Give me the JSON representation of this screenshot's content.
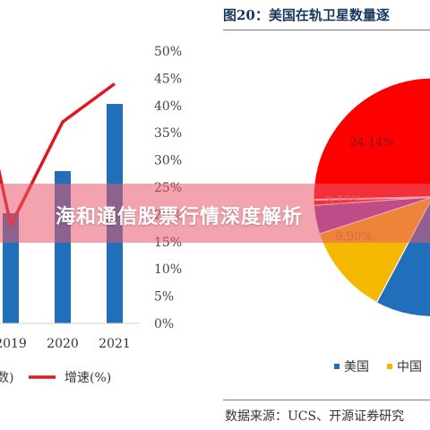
{
  "right_figure": {
    "title": "图20：美国在轨卫星数量逐",
    "source": "数据来源：UCS、开源证券研究"
  },
  "banner": {
    "text": "海和通信股票行情深度解析"
  },
  "colors": {
    "bar": "#1f6fba",
    "growth_line": "#e0171f",
    "usa": "#1f6fba",
    "china": "#f5b800",
    "red_slice": "#ff0000",
    "purple_slice": "#8a3fb0",
    "banner": "#e8586a"
  },
  "chart_data": [
    {
      "type": "bar",
      "categories": [
        "2019",
        "2020",
        "2021"
      ],
      "series": [
        {
          "name": "",
          "type": "bar",
          "axis": "left",
          "values": [
            null,
            null,
            null
          ]
        },
        {
          "name": "增速(%)",
          "type": "line",
          "axis": "right",
          "values": [
            18,
            37,
            44
          ]
        }
      ],
      "y2_ticks": [
        "0%",
        "5%",
        "10%",
        "15%",
        "20%",
        "25%",
        "30%",
        "35%",
        "40%",
        "45%",
        "50%"
      ],
      "y2lim": [
        0,
        50
      ],
      "legend": {
        "placement": "bottom",
        "visible_labels": [
          "数)",
          "增速(%)"
        ]
      },
      "grid": false
    },
    {
      "type": "pie",
      "slices": [
        {
          "label": "24.14%",
          "value": 24.14,
          "color_key": "red_slice"
        },
        {
          "label": "9.90%",
          "value": 9.9,
          "color_key": "china"
        },
        {
          "label": "3.15%",
          "value": 3.15,
          "color_key": "purple_slice"
        }
      ],
      "legend": {
        "placement": "bottom",
        "items": [
          "美国",
          "中国"
        ]
      }
    }
  ]
}
